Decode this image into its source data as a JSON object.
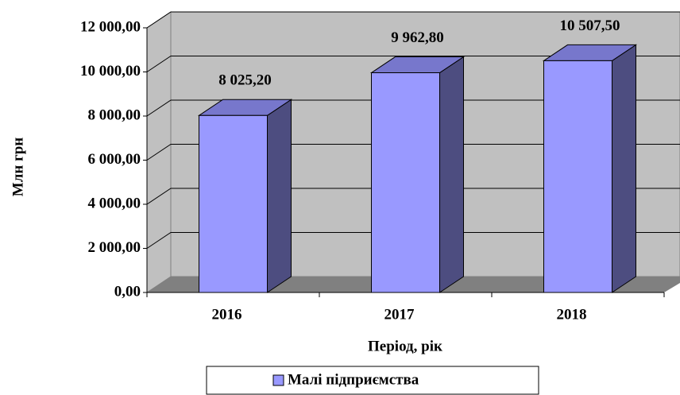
{
  "chart_data": {
    "type": "bar3d",
    "categories": [
      "2016",
      "2017",
      "2018"
    ],
    "series": [
      {
        "name": "Малі підприємства",
        "color": "#9999ff",
        "values": [
          8025.2,
          9962.8,
          10507.5
        ],
        "value_labels": [
          "8 025,20",
          "9 962,80",
          "10 507,50"
        ]
      }
    ],
    "x_label": "Період, рік",
    "y_label": "Млн  грн",
    "ylim": [
      0,
      12000
    ],
    "yticks": [
      {
        "value": 0,
        "label": "0,00"
      },
      {
        "value": 2000,
        "label": "2 000,00"
      },
      {
        "value": 4000,
        "label": "4 000,00"
      },
      {
        "value": 6000,
        "label": "6 000,00"
      },
      {
        "value": 8000,
        "label": "8 000,00"
      },
      {
        "value": 10000,
        "label": "10 000,00"
      },
      {
        "value": 12000,
        "label": "12 000,00"
      }
    ],
    "grid": true,
    "legend": "bottom"
  }
}
